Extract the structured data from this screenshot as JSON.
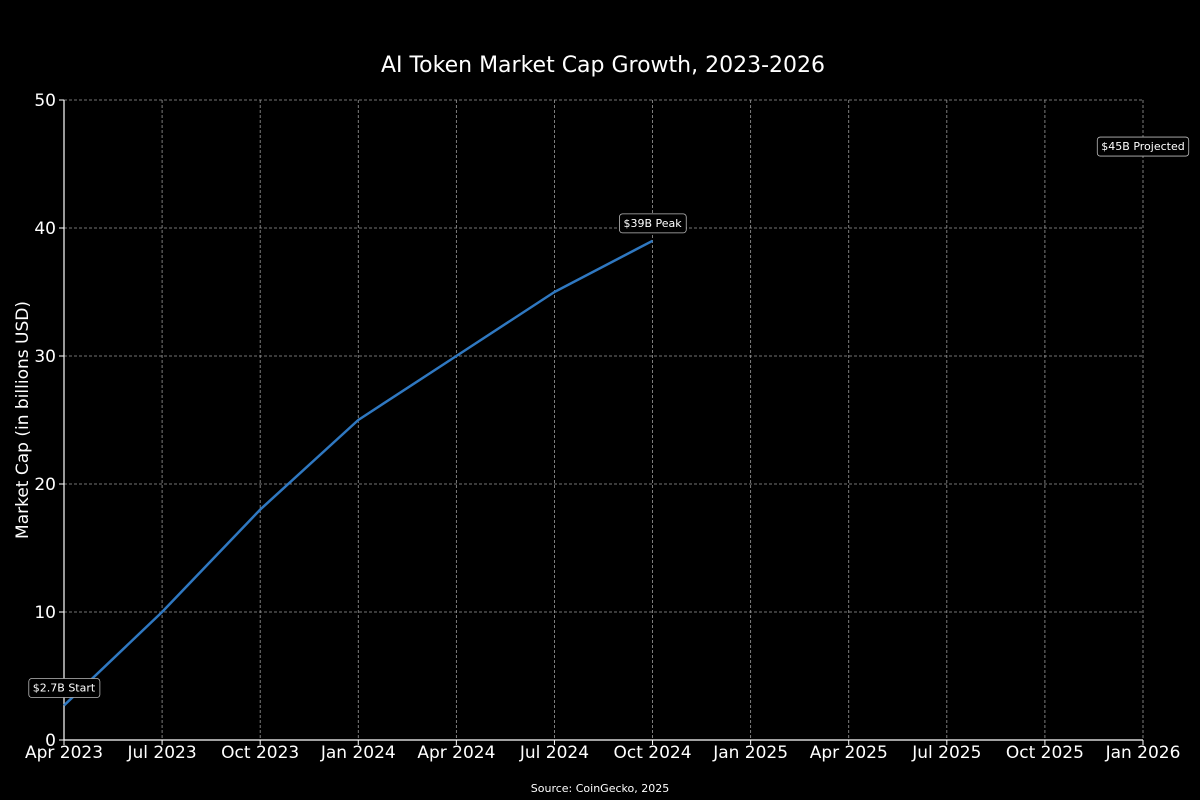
{
  "chart_data": {
    "type": "line",
    "title": "AI Token Market Cap Growth, 2023-2026",
    "ylabel": "Market Cap (in billions USD)",
    "xlabel": "",
    "source": "Source: CoinGecko, 2025",
    "x_range": [
      "2023-04",
      "2026-01"
    ],
    "x_ticks": [
      {
        "date": "2023-04",
        "label": "Apr 2023"
      },
      {
        "date": "2023-07",
        "label": "Jul 2023"
      },
      {
        "date": "2023-10",
        "label": "Oct 2023"
      },
      {
        "date": "2024-01",
        "label": "Jan 2024"
      },
      {
        "date": "2024-04",
        "label": "Apr 2024"
      },
      {
        "date": "2024-07",
        "label": "Jul 2024"
      },
      {
        "date": "2024-10",
        "label": "Oct 2024"
      },
      {
        "date": "2025-01",
        "label": "Jan 2025"
      },
      {
        "date": "2025-04",
        "label": "Apr 2025"
      },
      {
        "date": "2025-07",
        "label": "Jul 2025"
      },
      {
        "date": "2025-10",
        "label": "Oct 2025"
      },
      {
        "date": "2026-01",
        "label": "Jan 2026"
      }
    ],
    "ylim": [
      0,
      50
    ],
    "y_ticks": [
      0,
      10,
      20,
      30,
      40,
      50
    ],
    "grid": true,
    "series": [
      {
        "color": "#2f78c1",
        "points": [
          {
            "x": "2023-04",
            "y": 2.7
          },
          {
            "x": "2023-07",
            "y": 10
          },
          {
            "x": "2023-10",
            "y": 18
          },
          {
            "x": "2024-01",
            "y": 25
          },
          {
            "x": "2024-04",
            "y": 30
          },
          {
            "x": "2024-07",
            "y": 35
          },
          {
            "x": "2024-10",
            "y": 39
          }
        ]
      }
    ],
    "annotations": [
      {
        "text": "$2.7B Start",
        "x": "2023-04",
        "y": 4.1,
        "align": "center"
      },
      {
        "text": "$39B Peak",
        "x": "2024-10",
        "y": 40.4,
        "align": "center"
      },
      {
        "text": "$45B Projected",
        "x": "2026-01",
        "y": 46.4,
        "align": "center"
      }
    ]
  }
}
